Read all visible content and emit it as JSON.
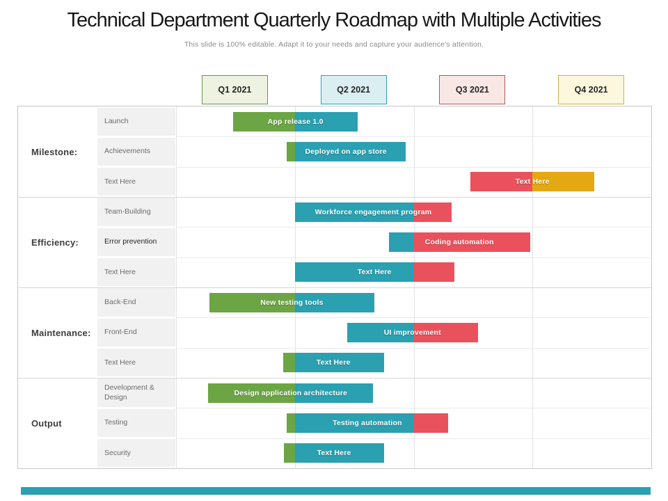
{
  "title": "Technical Department Quarterly Roadmap with Multiple Activities",
  "subtitle": "This slide is 100% editable. Adapt it to your needs and capture your audience's attention.",
  "quarters": [
    {
      "label": "Q1 2021",
      "fill": "#eef2e1",
      "border": "#6d9053"
    },
    {
      "label": "Q2 2021",
      "fill": "#dbeff3",
      "border": "#2ba4b5"
    },
    {
      "label": "Q3 2021",
      "fill": "#f9e7e6",
      "border": "#aa5a5f"
    },
    {
      "label": "Q4 2021",
      "fill": "#fcf7dd",
      "border": "#cfaf45"
    }
  ],
  "palette": {
    "green": "#6ca543",
    "teal": "#2aa0b1",
    "red": "#e9525c",
    "yellow": "#e3a812"
  },
  "accent_strip_color": "#2aa0b1",
  "chart_data": {
    "type": "gantt",
    "title": "Technical Department Quarterly Roadmap with Multiple Activities",
    "timeline": [
      "Q1 2021",
      "Q2 2021",
      "Q3 2021",
      "Q4 2021"
    ],
    "axis_unit": "quarters (0 = start of Q1 2021, 4 = end of Q4 2021)",
    "grid": true,
    "groups": [
      {
        "name": "Milestone:",
        "rows": [
          {
            "label": "Launch",
            "bar": {
              "text": "App release 1.0",
              "segments": [
                {
                  "color": "green",
                  "start": 0.48,
                  "end": 1.0
                },
                {
                  "color": "teal",
                  "start": 1.0,
                  "end": 1.53
                }
              ]
            }
          },
          {
            "label": "Achievements",
            "bar": {
              "text": "Deployed on app store",
              "segments": [
                {
                  "color": "green",
                  "start": 0.93,
                  "end": 1.0
                },
                {
                  "color": "teal",
                  "start": 1.0,
                  "end": 1.93
                }
              ]
            }
          },
          {
            "label": "Text Here",
            "bar": {
              "text": "Text Here",
              "segments": [
                {
                  "color": "red",
                  "start": 2.48,
                  "end": 3.0
                },
                {
                  "color": "yellow",
                  "start": 3.0,
                  "end": 3.52
                }
              ]
            }
          }
        ]
      },
      {
        "name": "Efficiency:",
        "rows": [
          {
            "label": "Team-Building",
            "bar": {
              "text": "Workforce engagement program",
              "segments": [
                {
                  "color": "teal",
                  "start": 1.0,
                  "end": 2.0
                },
                {
                  "color": "red",
                  "start": 2.0,
                  "end": 2.32
                }
              ]
            }
          },
          {
            "label": "Error prevention",
            "bar": {
              "text": "Coding automation",
              "segments": [
                {
                  "color": "teal",
                  "start": 1.79,
                  "end": 2.0
                },
                {
                  "color": "red",
                  "start": 2.0,
                  "end": 2.98
                }
              ]
            }
          },
          {
            "label": "Text Here",
            "bar": {
              "text": "Text Here",
              "segments": [
                {
                  "color": "teal",
                  "start": 1.0,
                  "end": 2.0
                },
                {
                  "color": "red",
                  "start": 2.0,
                  "end": 2.34
                }
              ]
            }
          }
        ]
      },
      {
        "name": "Maintenance:",
        "rows": [
          {
            "label": "Back-End",
            "bar": {
              "text": "New testing tools",
              "segments": [
                {
                  "color": "green",
                  "start": 0.28,
                  "end": 1.0
                },
                {
                  "color": "teal",
                  "start": 1.0,
                  "end": 1.67
                }
              ]
            }
          },
          {
            "label": "Front-End",
            "bar": {
              "text": "UI improvement",
              "segments": [
                {
                  "color": "teal",
                  "start": 1.44,
                  "end": 2.0
                },
                {
                  "color": "red",
                  "start": 2.0,
                  "end": 2.54
                }
              ]
            }
          },
          {
            "label": "Text Here",
            "bar": {
              "text": "Text Here",
              "segments": [
                {
                  "color": "green",
                  "start": 0.9,
                  "end": 1.0
                },
                {
                  "color": "teal",
                  "start": 1.0,
                  "end": 1.75
                }
              ]
            }
          }
        ]
      },
      {
        "name": "Output",
        "rows": [
          {
            "label": "Development & Design",
            "bar": {
              "text": "Design application architecture",
              "segments": [
                {
                  "color": "green",
                  "start": 0.27,
                  "end": 1.0
                },
                {
                  "color": "teal",
                  "start": 1.0,
                  "end": 1.66
                }
              ]
            }
          },
          {
            "label": "Testing",
            "bar": {
              "text": "Testing automation",
              "segments": [
                {
                  "color": "green",
                  "start": 0.93,
                  "end": 1.0
                },
                {
                  "color": "teal",
                  "start": 1.0,
                  "end": 2.0
                },
                {
                  "color": "red",
                  "start": 2.0,
                  "end": 2.29
                }
              ]
            }
          },
          {
            "label": "Security",
            "bar": {
              "text": "Text Here",
              "segments": [
                {
                  "color": "green",
                  "start": 0.91,
                  "end": 1.0
                },
                {
                  "color": "teal",
                  "start": 1.0,
                  "end": 1.75
                }
              ]
            }
          }
        ]
      }
    ]
  }
}
